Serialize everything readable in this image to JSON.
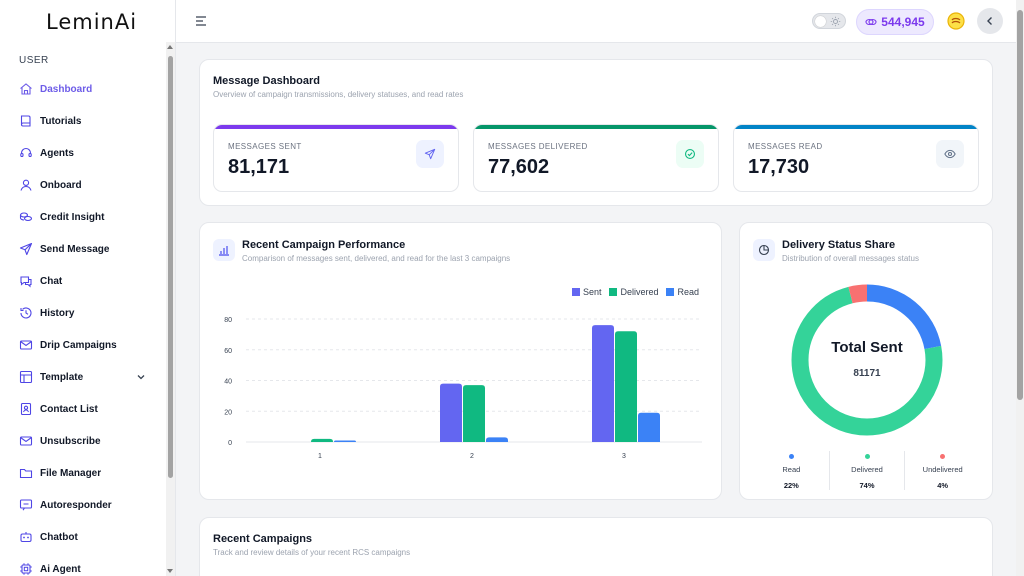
{
  "app": {
    "logo": "LeminAi"
  },
  "sidebar": {
    "section": "USER",
    "items": [
      {
        "label": "Dashboard",
        "icon": "home-icon",
        "active": true
      },
      {
        "label": "Tutorials",
        "icon": "book-icon"
      },
      {
        "label": "Agents",
        "icon": "headset-icon"
      },
      {
        "label": "Onboard",
        "icon": "user-icon"
      },
      {
        "label": "Credit Insight",
        "icon": "coins-icon"
      },
      {
        "label": "Send Message",
        "icon": "send-icon"
      },
      {
        "label": "Chat",
        "icon": "chat-icon"
      },
      {
        "label": "History",
        "icon": "history-icon"
      },
      {
        "label": "Drip Campaigns",
        "icon": "mail-icon"
      },
      {
        "label": "Template",
        "icon": "template-icon",
        "has_submenu": true
      },
      {
        "label": "Contact List",
        "icon": "contact-icon"
      },
      {
        "label": "Unsubscribe",
        "icon": "mail-x-icon"
      },
      {
        "label": "File Manager",
        "icon": "folder-icon"
      },
      {
        "label": "Autoresponder",
        "icon": "reply-icon"
      },
      {
        "label": "Chatbot",
        "icon": "bot-icon"
      },
      {
        "label": "Ai Agent",
        "icon": "cpu-icon"
      }
    ]
  },
  "header": {
    "credits": "544,945"
  },
  "dashboard": {
    "title": "Message Dashboard",
    "subtitle": "Overview of campaign transmissions, delivery statuses, and read rates",
    "stats": [
      {
        "label": "MESSAGES SENT",
        "value": "81,171",
        "color": "#7c3aed",
        "icon": "send-icon",
        "icon_bg": "#eef2ff",
        "icon_color": "#6366f1"
      },
      {
        "label": "MESSAGES DELIVERED",
        "value": "77,602",
        "color": "#059669",
        "icon": "check-circle-icon",
        "icon_bg": "#ecfdf5",
        "icon_color": "#10b981"
      },
      {
        "label": "MESSAGES READ",
        "value": "17,730",
        "color": "#0284c7",
        "icon": "eye-icon",
        "icon_bg": "#f1f5f9",
        "icon_color": "#64748b"
      }
    ]
  },
  "performance": {
    "title": "Recent Campaign Performance",
    "subtitle": "Comparison of messages sent, delivered, and read for the last 3 campaigns"
  },
  "share": {
    "title": "Delivery Status Share",
    "subtitle": "Distribution of overall messages status",
    "center_title": "Total Sent",
    "center_value": "81171",
    "segments": [
      {
        "name": "Read",
        "percent_label": "22%",
        "value": 22,
        "color": "#3b82f6"
      },
      {
        "name": "Delivered",
        "percent_label": "74%",
        "value": 74,
        "color": "#34d399"
      },
      {
        "name": "Undelivered",
        "percent_label": "4%",
        "value": 4,
        "color": "#f87171"
      }
    ]
  },
  "recent": {
    "title": "Recent Campaigns",
    "subtitle": "Track and review details of your recent RCS campaigns"
  },
  "chart_data": {
    "type": "bar",
    "categories": [
      "1",
      "2",
      "3"
    ],
    "series": [
      {
        "name": "Sent",
        "values": [
          0,
          38,
          76
        ],
        "color": "#6366f1"
      },
      {
        "name": "Delivered",
        "values": [
          2,
          37,
          72
        ],
        "color": "#10b981"
      },
      {
        "name": "Read",
        "values": [
          1,
          3,
          19
        ],
        "color": "#3b82f6"
      }
    ],
    "yticks": [
      "0",
      "20",
      "40",
      "60",
      "80"
    ],
    "ylim": [
      0,
      80
    ],
    "legend": "top-right",
    "grid": true
  }
}
